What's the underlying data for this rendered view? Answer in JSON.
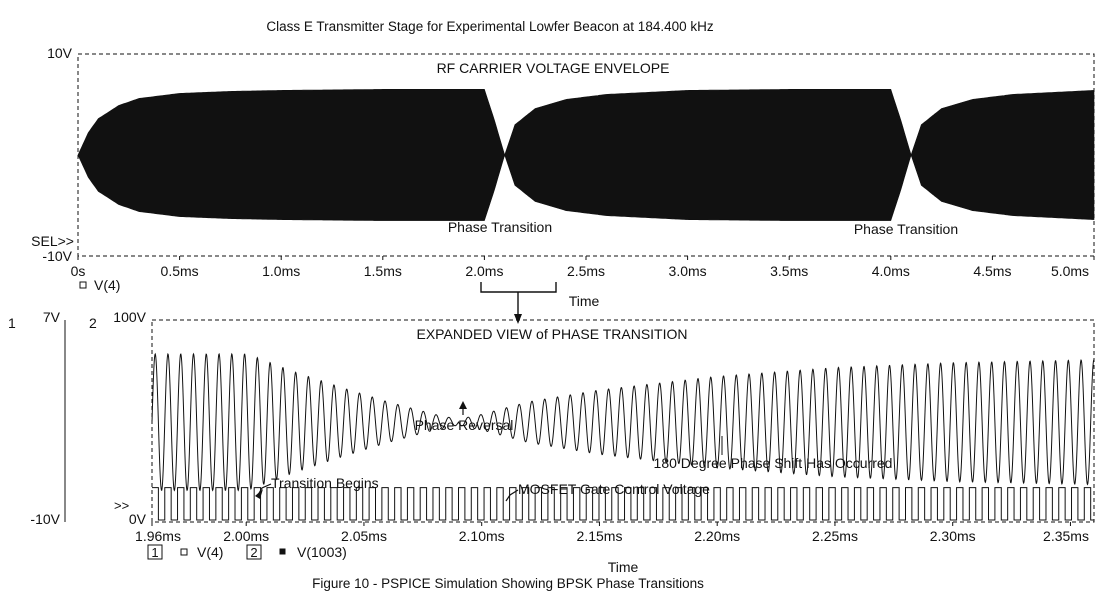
{
  "figure": {
    "title": "Class E Transmitter Stage for Experimental Lowfer Beacon at 184.400 kHz",
    "caption": "Figure 10 - PSPICE Simulation Showing BPSK Phase Transitions",
    "bracket_label": "Time",
    "colors": {
      "ink": "#111111",
      "background": "#ffffff"
    }
  },
  "chart_data": [
    {
      "type": "line",
      "title": "RF CARRIER VOLTAGE ENVELOPE",
      "xlabel": "",
      "ylabel": "",
      "x_unit": "ms",
      "xlim": [
        0,
        5.0
      ],
      "ylim": [
        -10,
        10
      ],
      "y_tick_labels": [
        "10V",
        "-10V"
      ],
      "x_tick_labels": [
        "0s",
        "0.5ms",
        "1.0ms",
        "1.5ms",
        "2.0ms",
        "2.5ms",
        "3.0ms",
        "3.5ms",
        "4.0ms",
        "4.5ms",
        "5.0ms"
      ],
      "x_ticks": [
        0,
        0.5,
        1.0,
        1.5,
        2.0,
        2.5,
        3.0,
        3.5,
        4.0,
        4.5,
        5.0
      ],
      "marker_label": "SEL>>",
      "carrier_frequency_khz": 184.4,
      "envelope_amplitude_v": 6.5,
      "phase_transitions_ms": [
        2.1,
        4.1
      ],
      "series": [
        {
          "name": "V(4)",
          "x": [
            0,
            0.05,
            0.1,
            0.2,
            0.3,
            0.5,
            0.75,
            1.0,
            1.5,
            2.0,
            2.05,
            2.1,
            2.15,
            2.25,
            2.4,
            2.6,
            3.0,
            3.5,
            4.0,
            4.05,
            4.1,
            4.15,
            4.25,
            4.4,
            4.6,
            5.0
          ],
          "envelope": [
            0.0,
            2.2,
            3.6,
            4.9,
            5.6,
            6.1,
            6.3,
            6.4,
            6.5,
            6.5,
            3.4,
            0.0,
            3.0,
            4.6,
            5.5,
            6.0,
            6.4,
            6.5,
            6.5,
            3.4,
            0.0,
            3.0,
            4.6,
            5.5,
            6.0,
            6.4
          ]
        }
      ],
      "annotations": [
        {
          "text": "Phase Transition",
          "x": 2.05,
          "y": -7.2
        },
        {
          "text": "Phase Transition",
          "x": 4.05,
          "y": -7.2
        }
      ]
    },
    {
      "type": "line",
      "title": "EXPANDED VIEW of PHASE TRANSITION",
      "xlabel": "Time",
      "ylabel": "",
      "x_unit": "ms",
      "xlim": [
        1.96,
        2.36
      ],
      "x_tick_labels": [
        "1.96ms",
        "2.00ms",
        "2.05ms",
        "2.10ms",
        "2.15ms",
        "2.20ms",
        "2.25ms",
        "2.30ms",
        "2.35ms"
      ],
      "x_ticks": [
        1.96,
        2.0,
        2.05,
        2.1,
        2.15,
        2.2,
        2.25,
        2.3,
        2.35
      ],
      "axis1": {
        "index": "1",
        "ylim": [
          -10,
          7
        ],
        "tick_labels": [
          "7V",
          "-10V"
        ]
      },
      "axis2": {
        "index": "2",
        "ylim": [
          0,
          100
        ],
        "tick_labels": [
          "100V",
          "0V"
        ],
        "marker_label": ">>"
      },
      "carrier_frequency_khz": 184.4,
      "transition_begins_ms": 2.0,
      "phase_reversal_ms": 2.09,
      "series": [
        {
          "name": "V(4)",
          "axis": "1",
          "x": [
            1.96,
            2.0,
            2.005,
            2.02,
            2.04,
            2.06,
            2.08,
            2.09,
            2.1,
            2.12,
            2.15,
            2.2,
            2.25,
            2.3,
            2.36
          ],
          "envelope": [
            7.0,
            7.0,
            6.6,
            5.2,
            3.6,
            2.1,
            0.8,
            0.3,
            0.8,
            2.1,
            3.3,
            4.7,
            5.6,
            6.1,
            6.4
          ]
        },
        {
          "name": "V(1003)",
          "axis": "2",
          "kind": "square",
          "high_fraction": 0.5,
          "period_us": 5.4229934924,
          "phase_inverts_at_ms": 2.0
        }
      ],
      "annotations": [
        {
          "text": "Transition Begins",
          "x": 2.0,
          "y": -6.6
        },
        {
          "text": "Phase Reversal",
          "x": 2.09,
          "y": -0.9
        },
        {
          "text": "180 Degree Phase Shift Has Occurred",
          "x": 2.19,
          "y": -5.6
        },
        {
          "text": "MOSFET Gate Control Voltage",
          "x": 2.1,
          "y": -7.9
        }
      ]
    }
  ]
}
